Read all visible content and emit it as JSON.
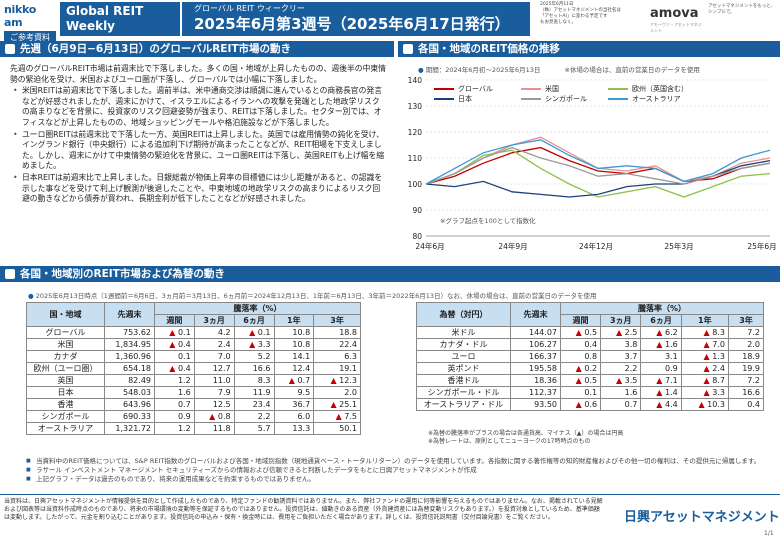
{
  "header": {
    "logo": "nikko am",
    "ref_label": "ご参考資料",
    "series_title_1": "Global REIT",
    "series_title_2": "Weekly",
    "sub": "グローバル REIT ウィークリー",
    "main": "2025年6月第3週号（2025年6月17日発行）",
    "meta": [
      "2025年6月11日",
      "（株）アセットマネジメントの当社名は",
      "「アセットAI」に変わる予定です",
      "もお見逃しなく。"
    ],
    "brand2": "amova",
    "brand2_sub": "アモーヴァ・アセットマネジメント",
    "brand2_note": "アセットマネジメントをもっと、シンプルで。"
  },
  "section1": {
    "title": "先週（6月9日−6月13日）のグローバルREIT市場の動き",
    "intro": "先週のグローバルREIT市場は前週末比で下落しました。多くの国・地域が上昇したものの、週後半の中東情勢の緊迫化を受け、米国およびユーロ圏が下落し、グローバルでは小幅に下落しました。",
    "bullets": [
      "米国REITは前週末比で下落しました。週前半は、米中通商交渉は順調に進んでいるとの商務長官の発言などが好感されましたが、週末にかけて、イスラエルによるイランへの攻撃を発端とした地政学リスクの高まりなどを背景に、投資家のリスク回避姿勢が強まり、REITは下落しました。セクター別では、オフィスなどが上昇したものの、地域ショッピングモールや格泊施設などが下落しました。",
      "ユーロ圏REITは前週末比で下落した一方、英国REITは上昇しました。英国では雇用情勢の鈍化を受け、イングランド銀行（中央銀行）による追加利下げ期待が高まったことなどが、REIT相場を下支えしました。しかし、週末にかけて中東情勢の緊迫化を背景に、ユーロ圏REITは下落し、英国REITも上げ幅を縮めました。",
      "日本REITは前週末比で上昇しました。日銀総裁が物価上昇率の目標値には少し距離があると、の認識を示した事などを受けて利上げ観測が後退したことや、中東地域の地政学リスクの高まりによるリスク回避の動きなどから債券が買われ、長期金利が低下したことなどが好感されました。"
    ]
  },
  "section2": {
    "title": "各国・地域のREIT価格の推移",
    "period": "期間：2024年6月初〜2025年6月13日",
    "holiday_note": "※休場の場合は、直前の営業日のデータを使用",
    "base_note": "※グラフ起点を100として指数化"
  },
  "chart_data": {
    "type": "line",
    "title": "",
    "xlabel": "",
    "ylabel": "",
    "ylim": [
      80,
      140
    ],
    "yticks": [
      80,
      90,
      100,
      110,
      120,
      130,
      140
    ],
    "xticks": [
      "24年6月",
      "24年9月",
      "24年12月",
      "25年3月",
      "25年6月"
    ],
    "x": [
      0,
      1,
      2,
      3,
      4,
      5,
      6,
      7,
      8,
      9,
      10,
      11,
      12
    ],
    "grid": true,
    "legend_position": "top",
    "series": [
      {
        "name": "グローバル",
        "color": "#c00000",
        "values": [
          100,
          103,
          108,
          112,
          114,
          109,
          105,
          104,
          106,
          101,
          102,
          106,
          108
        ]
      },
      {
        "name": "米国",
        "color": "#e89090",
        "values": [
          100,
          104,
          110,
          115,
          118,
          112,
          106,
          105,
          107,
          101,
          103,
          108,
          110
        ]
      },
      {
        "name": "欧州（英国含む）",
        "color": "#90c050",
        "values": [
          100,
          104,
          111,
          113,
          106,
          100,
          95,
          97,
          99,
          95,
          99,
          103,
          104
        ]
      },
      {
        "name": "日本",
        "color": "#1f3f7a",
        "values": [
          100,
          99,
          101,
          97,
          96,
          95,
          96,
          99,
          100,
          100,
          103,
          107,
          109
        ]
      },
      {
        "name": "シンガポール",
        "color": "#9a9a9a",
        "values": [
          100,
          104,
          110,
          114,
          110,
          107,
          103,
          104,
          102,
          100,
          103,
          106,
          108
        ]
      },
      {
        "name": "オーストラリア",
        "color": "#3a9ad4",
        "values": [
          100,
          106,
          112,
          115,
          117,
          111,
          106,
          107,
          106,
          101,
          104,
          110,
          113
        ]
      }
    ]
  },
  "section3": {
    "title": "各国・地域別のREIT市場および為替の動き",
    "date_note": "2025年6月13日時点（1週間前＝6月6日、3ヵ月前＝3月13日、6ヵ月前＝2024年12月13日、1年前＝6月13日、3年前＝2022年6月13日）なお、休場の場合は、直前の営業日のデータを使用",
    "reit_table": {
      "headers": [
        "国・地域",
        "先週末",
        "騰落率（%）"
      ],
      "subheaders": [
        "週間",
        "3ヵ月",
        "6ヵ月",
        "1年",
        "3年"
      ],
      "rows": [
        {
          "name": "グローバル",
          "last": "753.62",
          "w": "▲ 0.1",
          "m3": "4.2",
          "m6": "▲ 0.1",
          "y1": "10.8",
          "y3": "18.8"
        },
        {
          "name": "米国",
          "last": "1,834.95",
          "w": "▲ 0.4",
          "m3": "2.4",
          "m6": "▲ 3.3",
          "y1": "10.8",
          "y3": "22.4"
        },
        {
          "name": "カナダ",
          "last": "1,360.96",
          "w": "0.1",
          "m3": "7.0",
          "m6": "5.2",
          "y1": "14.1",
          "y3": "6.3"
        },
        {
          "name": "欧州（ユーロ圏）",
          "last": "654.18",
          "w": "▲ 0.4",
          "m3": "12.7",
          "m6": "16.6",
          "y1": "12.4",
          "y3": "19.1"
        },
        {
          "name": "英国",
          "last": "82.49",
          "w": "1.2",
          "m3": "11.0",
          "m6": "8.3",
          "y1": "▲ 0.7",
          "y3": "▲ 12.3"
        },
        {
          "name": "日本",
          "last": "548.03",
          "w": "1.6",
          "m3": "7.9",
          "m6": "11.9",
          "y1": "9.5",
          "y3": "2.0"
        },
        {
          "name": "香港",
          "last": "643.96",
          "w": "0.7",
          "m3": "12.5",
          "m6": "23.4",
          "y1": "36.7",
          "y3": "▲ 25.1"
        },
        {
          "name": "シンガポール",
          "last": "690.33",
          "w": "0.9",
          "m3": "▲ 0.8",
          "m6": "2.2",
          "y1": "6.0",
          "y3": "▲ 7.5"
        },
        {
          "name": "オーストラリア",
          "last": "1,321.72",
          "w": "1.2",
          "m3": "11.8",
          "m6": "5.7",
          "y1": "13.3",
          "y3": "50.1"
        }
      ]
    },
    "fx_table": {
      "headers": [
        "為替（対円）",
        "先週末",
        "騰落率（%）"
      ],
      "subheaders": [
        "週間",
        "3ヵ月",
        "6ヵ月",
        "1年",
        "3年"
      ],
      "rows": [
        {
          "name": "米ドル",
          "last": "144.07",
          "w": "▲ 0.5",
          "m3": "▲ 2.5",
          "m6": "▲ 6.2",
          "y1": "▲ 8.3",
          "y3": "7.2"
        },
        {
          "name": "カナダ・ドル",
          "last": "106.27",
          "w": "0.4",
          "m3": "3.8",
          "m6": "▲ 1.6",
          "y1": "▲ 7.0",
          "y3": "2.0"
        },
        {
          "name": "ユーロ",
          "last": "166.37",
          "w": "0.8",
          "m3": "3.7",
          "m6": "3.1",
          "y1": "▲ 1.3",
          "y3": "18.9"
        },
        {
          "name": "英ポンド",
          "last": "195.58",
          "w": "▲ 0.2",
          "m3": "2.2",
          "m6": "0.9",
          "y1": "▲ 2.4",
          "y3": "19.9"
        },
        {
          "name": "香港ドル",
          "last": "18.36",
          "w": "▲ 0.5",
          "m3": "▲ 3.5",
          "m6": "▲ 7.1",
          "y1": "▲ 8.7",
          "y3": "7.2"
        },
        {
          "name": "シンガポール・ドル",
          "last": "112.37",
          "w": "0.1",
          "m3": "1.6",
          "m6": "▲ 1.4",
          "y1": "▲ 3.3",
          "y3": "16.6"
        },
        {
          "name": "オーストラリア・ドル",
          "last": "93.50",
          "w": "▲ 0.6",
          "m3": "0.7",
          "m6": "▲ 4.4",
          "y1": "▲ 10.3",
          "y3": "0.4"
        }
      ],
      "notes": [
        "※為替の騰落率がプラスの場合は各通貨高、マイナス（▲）の場合は円高",
        "※為替レートは、原則としてニューヨークの17時時点のもの"
      ]
    },
    "notes": [
      "当資料中のREIT価格については、S&P REIT指数のグローバルおよび各国・地域別指数（現地通貨ベース・トータルリターン）のデータを使用しています。各指数に関する著作権等の知的財産権およびその他一切の権利は、その提供元に帰属します。",
      "ラサール インベストメント マネージメント セキュリティーズからの情報および信頼できると判断したデータをもとに日興アセットマネジメントが作成",
      "上記グラフ・データは過去のものであり、将来の運用成果などを約束するものではありません。"
    ]
  },
  "footer": {
    "text": "当資料は、日興アセットマネジメントが情報提供を目的として作成したものであり、特定ファンドの勧誘資料ではありません。また、弊社ファンドの運用に何等影響を与えるものではありません。なお、掲載されている見解および図表等は当資料作成時点のものであり、将来の市場環境の変動等を保証するものではありません。投資信託は、値動きのある資産（外貨建資産には為替変動リスクもあります。）を投資対象としているため、基準価額は変動します。したがって、元金を割り込むことがあります。投資信託の申込み・保有・換金時には、費用をご負担いただく場合があります。詳しくは、投資信託説明書（交付目論見書）をご覧ください。",
    "brand": "日興アセットマネジメント",
    "page": "1/1"
  }
}
